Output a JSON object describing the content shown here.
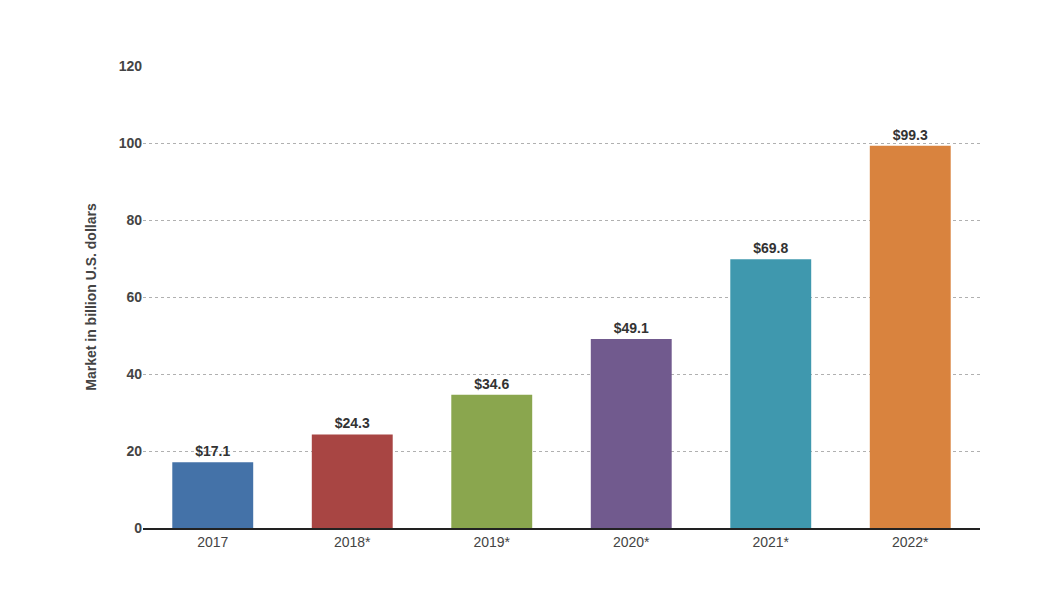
{
  "chart_data": {
    "type": "bar",
    "y_label": "Market in billion U.S. dollars",
    "categories": [
      "2017",
      "2018*",
      "2019*",
      "2020*",
      "2021*",
      "2022*"
    ],
    "values": [
      17.1,
      24.3,
      34.6,
      49.1,
      69.8,
      99.3
    ],
    "value_labels": [
      "$17.1",
      "$24.3",
      "$34.6",
      "$49.1",
      "$69.8",
      "$99.3"
    ],
    "colors": [
      "#4472a8",
      "#a84543",
      "#8aa64e",
      "#715a8e",
      "#3f98ae",
      "#d9833e"
    ],
    "ylim": [
      0,
      120
    ],
    "yticks": [
      0,
      20,
      40,
      60,
      80,
      100,
      120
    ],
    "grid": true,
    "data_labels": true
  }
}
